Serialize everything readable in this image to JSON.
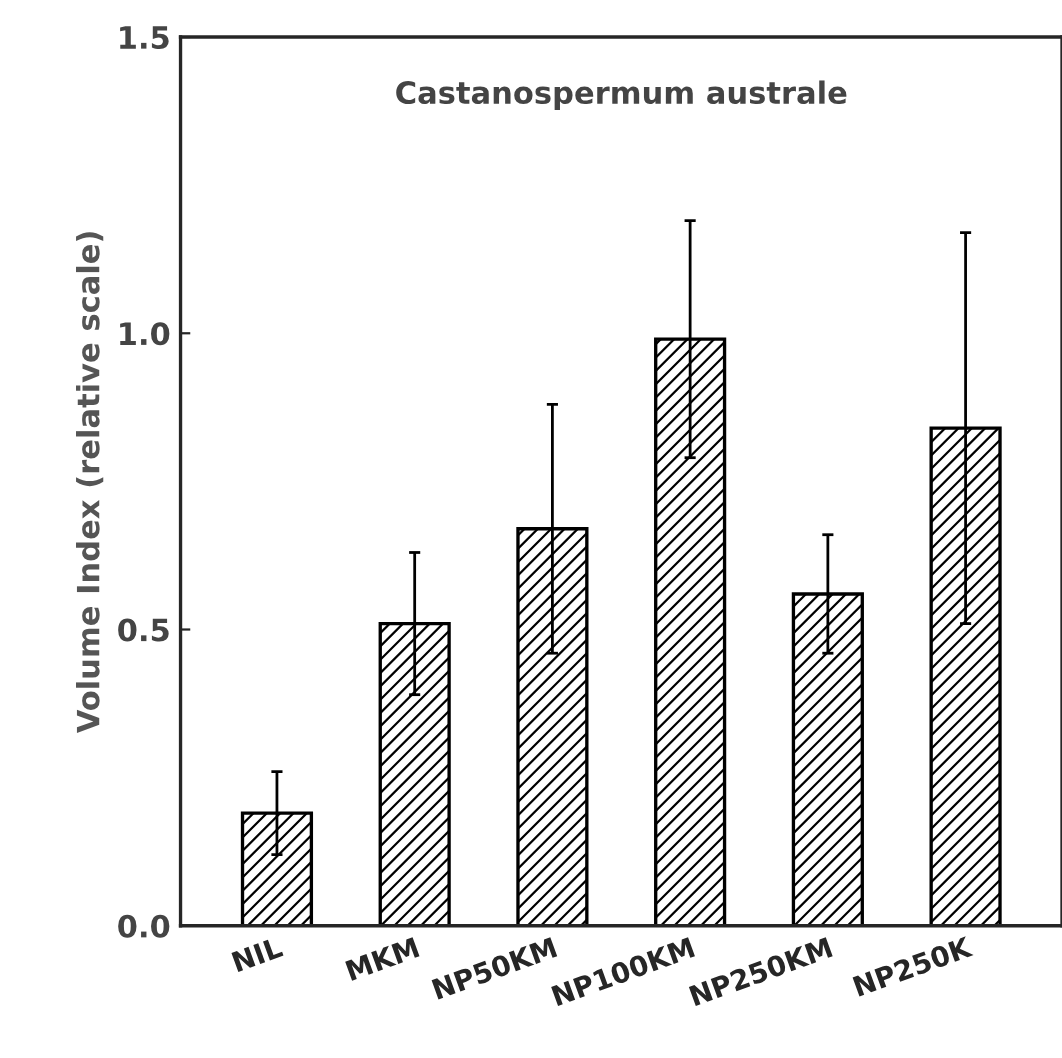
{
  "chart_data": {
    "type": "bar",
    "title": "Castanospermum australe",
    "ylabel": "Volume Index (relative scale)",
    "categories": [
      "NIL",
      "MKM",
      "NP50KM",
      "NP100KM",
      "NP250KM",
      "NP250K"
    ],
    "values": [
      0.19,
      0.51,
      0.67,
      0.99,
      0.56,
      0.84
    ],
    "errors": [
      0.07,
      0.12,
      0.21,
      0.2,
      0.1,
      0.33
    ],
    "color": "#000000",
    "ylim": [
      0,
      1.5
    ],
    "yticks": [
      {
        "value": 0,
        "label": "0.0"
      },
      {
        "value": 0.5,
        "label": "0.5"
      },
      {
        "value": 1,
        "label": "1.0"
      },
      {
        "value": 1.5,
        "label": "1.5"
      }
    ],
    "grid": false,
    "legend": false
  }
}
